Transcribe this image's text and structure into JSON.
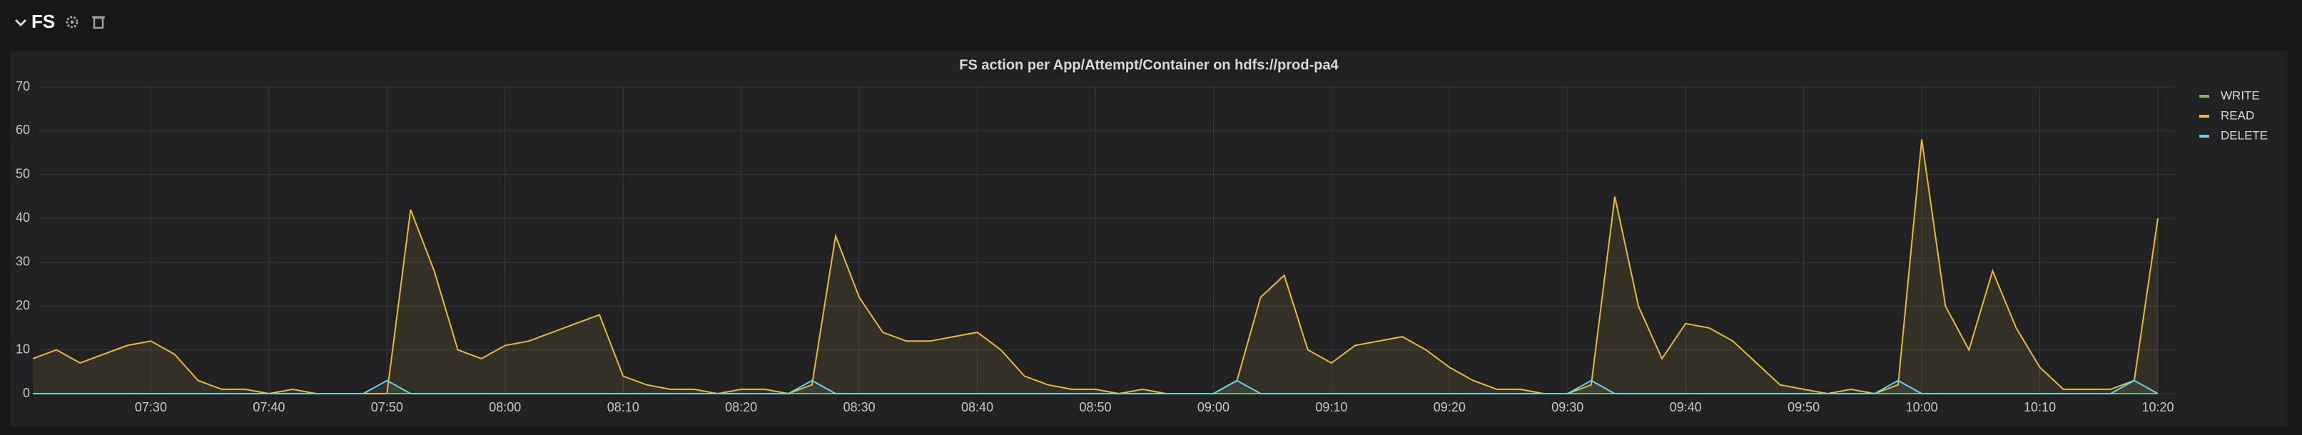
{
  "row": {
    "title": "FS"
  },
  "chart_data": {
    "type": "line",
    "title": "FS action per App/Attempt/Container on hdfs://prod-pa4",
    "categories": [
      null,
      null,
      null,
      null,
      null,
      "07:30",
      null,
      null,
      null,
      null,
      "07:40",
      null,
      null,
      null,
      null,
      "07:50",
      null,
      null,
      null,
      null,
      "08:00",
      null,
      null,
      null,
      null,
      "08:10",
      null,
      null,
      null,
      null,
      "08:20",
      null,
      null,
      null,
      null,
      "08:30",
      null,
      null,
      null,
      null,
      "08:40",
      null,
      null,
      null,
      null,
      "08:50",
      null,
      null,
      null,
      null,
      "09:00",
      null,
      null,
      null,
      null,
      "09:10",
      null,
      null,
      null,
      null,
      "09:20",
      null,
      null,
      null,
      null,
      "09:30",
      null,
      null,
      null,
      null,
      "09:40",
      null,
      null,
      null,
      null,
      "09:50",
      null,
      null,
      null,
      null,
      "10:00",
      null,
      null,
      null,
      null,
      "10:10",
      null,
      null,
      null,
      null,
      "10:20"
    ],
    "series": [
      {
        "name": "WRITE",
        "color": "#7eb26d",
        "values": [
          0,
          0,
          0,
          0,
          0,
          0,
          0,
          0,
          0,
          0,
          0,
          0,
          0,
          0,
          0,
          0,
          0,
          0,
          0,
          0,
          0,
          0,
          0,
          0,
          0,
          0,
          0,
          0,
          0,
          0,
          0,
          0,
          0,
          0,
          0,
          0,
          0,
          0,
          0,
          0,
          0,
          0,
          0,
          0,
          0,
          0,
          0,
          0,
          0,
          0,
          0,
          0,
          0,
          0,
          0,
          0,
          0,
          0,
          0,
          0,
          0,
          0,
          0,
          0,
          0,
          0,
          0,
          0,
          0,
          0,
          0,
          0,
          0,
          0,
          0,
          0,
          0,
          0,
          0,
          0,
          0,
          0,
          0,
          0,
          0,
          0,
          0,
          0,
          0,
          0,
          0
        ]
      },
      {
        "name": "READ",
        "color": "#eab839",
        "values": [
          8,
          10,
          7,
          9,
          11,
          12,
          9,
          3,
          1,
          1,
          0,
          1,
          0,
          0,
          0,
          0,
          42,
          28,
          10,
          8,
          11,
          12,
          14,
          16,
          18,
          4,
          2,
          1,
          1,
          0,
          1,
          1,
          0,
          2,
          36,
          22,
          14,
          12,
          12,
          13,
          14,
          10,
          4,
          2,
          1,
          1,
          0,
          1,
          0,
          0,
          0,
          3,
          22,
          27,
          10,
          7,
          11,
          12,
          13,
          10,
          6,
          3,
          1,
          1,
          0,
          0,
          2,
          45,
          20,
          8,
          16,
          15,
          12,
          7,
          2,
          1,
          0,
          1,
          0,
          2,
          58,
          20,
          10,
          28,
          15,
          6,
          1,
          1,
          1,
          3,
          40
        ]
      },
      {
        "name": "DELETE",
        "color": "#6ed0e0",
        "values": [
          0,
          0,
          0,
          0,
          0,
          0,
          0,
          0,
          0,
          0,
          0,
          0,
          0,
          0,
          0,
          3,
          0,
          0,
          0,
          0,
          0,
          0,
          0,
          0,
          0,
          0,
          0,
          0,
          0,
          0,
          0,
          0,
          0,
          3,
          0,
          0,
          0,
          0,
          0,
          0,
          0,
          0,
          0,
          0,
          0,
          0,
          0,
          0,
          0,
          0,
          0,
          3,
          0,
          0,
          0,
          0,
          0,
          0,
          0,
          0,
          0,
          0,
          0,
          0,
          0,
          0,
          3,
          0,
          0,
          0,
          0,
          0,
          0,
          0,
          0,
          0,
          0,
          0,
          0,
          3,
          0,
          0,
          0,
          0,
          0,
          0,
          0,
          0,
          0,
          3,
          0
        ]
      }
    ],
    "ylim": [
      0,
      70
    ],
    "yticks": [
      0,
      10,
      20,
      30,
      40,
      50,
      60,
      70
    ],
    "grid": true
  }
}
